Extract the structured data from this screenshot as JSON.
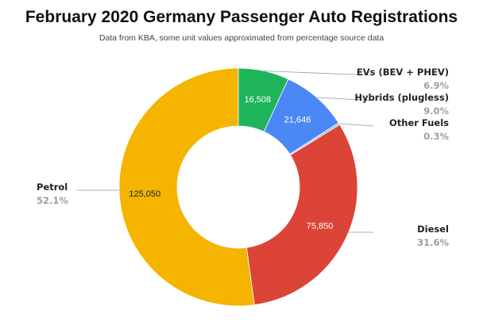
{
  "chart_data": {
    "type": "pie",
    "title": "February 2020 Germany Passenger Auto Registrations",
    "subtitle": "Data from KBA, some unit values approximated from percentage source data",
    "slices": [
      {
        "name": "EVs (BEV + PHEV)",
        "value": 16508,
        "percent": "6.9%",
        "value_label": "16,508",
        "color": "#1eb45a"
      },
      {
        "name": "Hybrids (plugless)",
        "value": 21646,
        "percent": "9.0%",
        "value_label": "21,646",
        "color": "#4b87f5"
      },
      {
        "name": "Other Fuels",
        "value": 720,
        "percent": "0.3%",
        "value_label": "",
        "color": "#a9b5e0"
      },
      {
        "name": "Diesel",
        "value": 75850,
        "percent": "31.6%",
        "value_label": "75,850",
        "color": "#dc4437"
      },
      {
        "name": "Petrol",
        "value": 125050,
        "percent": "52.1%",
        "value_label": "125,050",
        "color": "#f4b400"
      }
    ],
    "donut": true,
    "legend": "external labels with leader lines"
  }
}
